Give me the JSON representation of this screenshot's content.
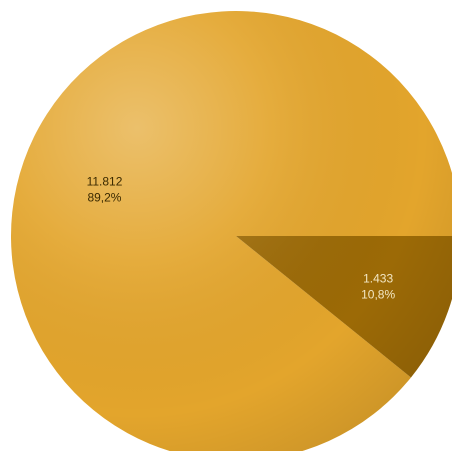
{
  "chart_data": {
    "type": "pie",
    "title": "",
    "slices": [
      {
        "value": 11812,
        "label_value": "11.812",
        "label_percent": "89,2%",
        "color": "#e3a52c"
      },
      {
        "value": 1433,
        "label_value": "1.433",
        "label_percent": "10,8%",
        "color": "#9c6a06"
      }
    ],
    "legend": "none"
  }
}
